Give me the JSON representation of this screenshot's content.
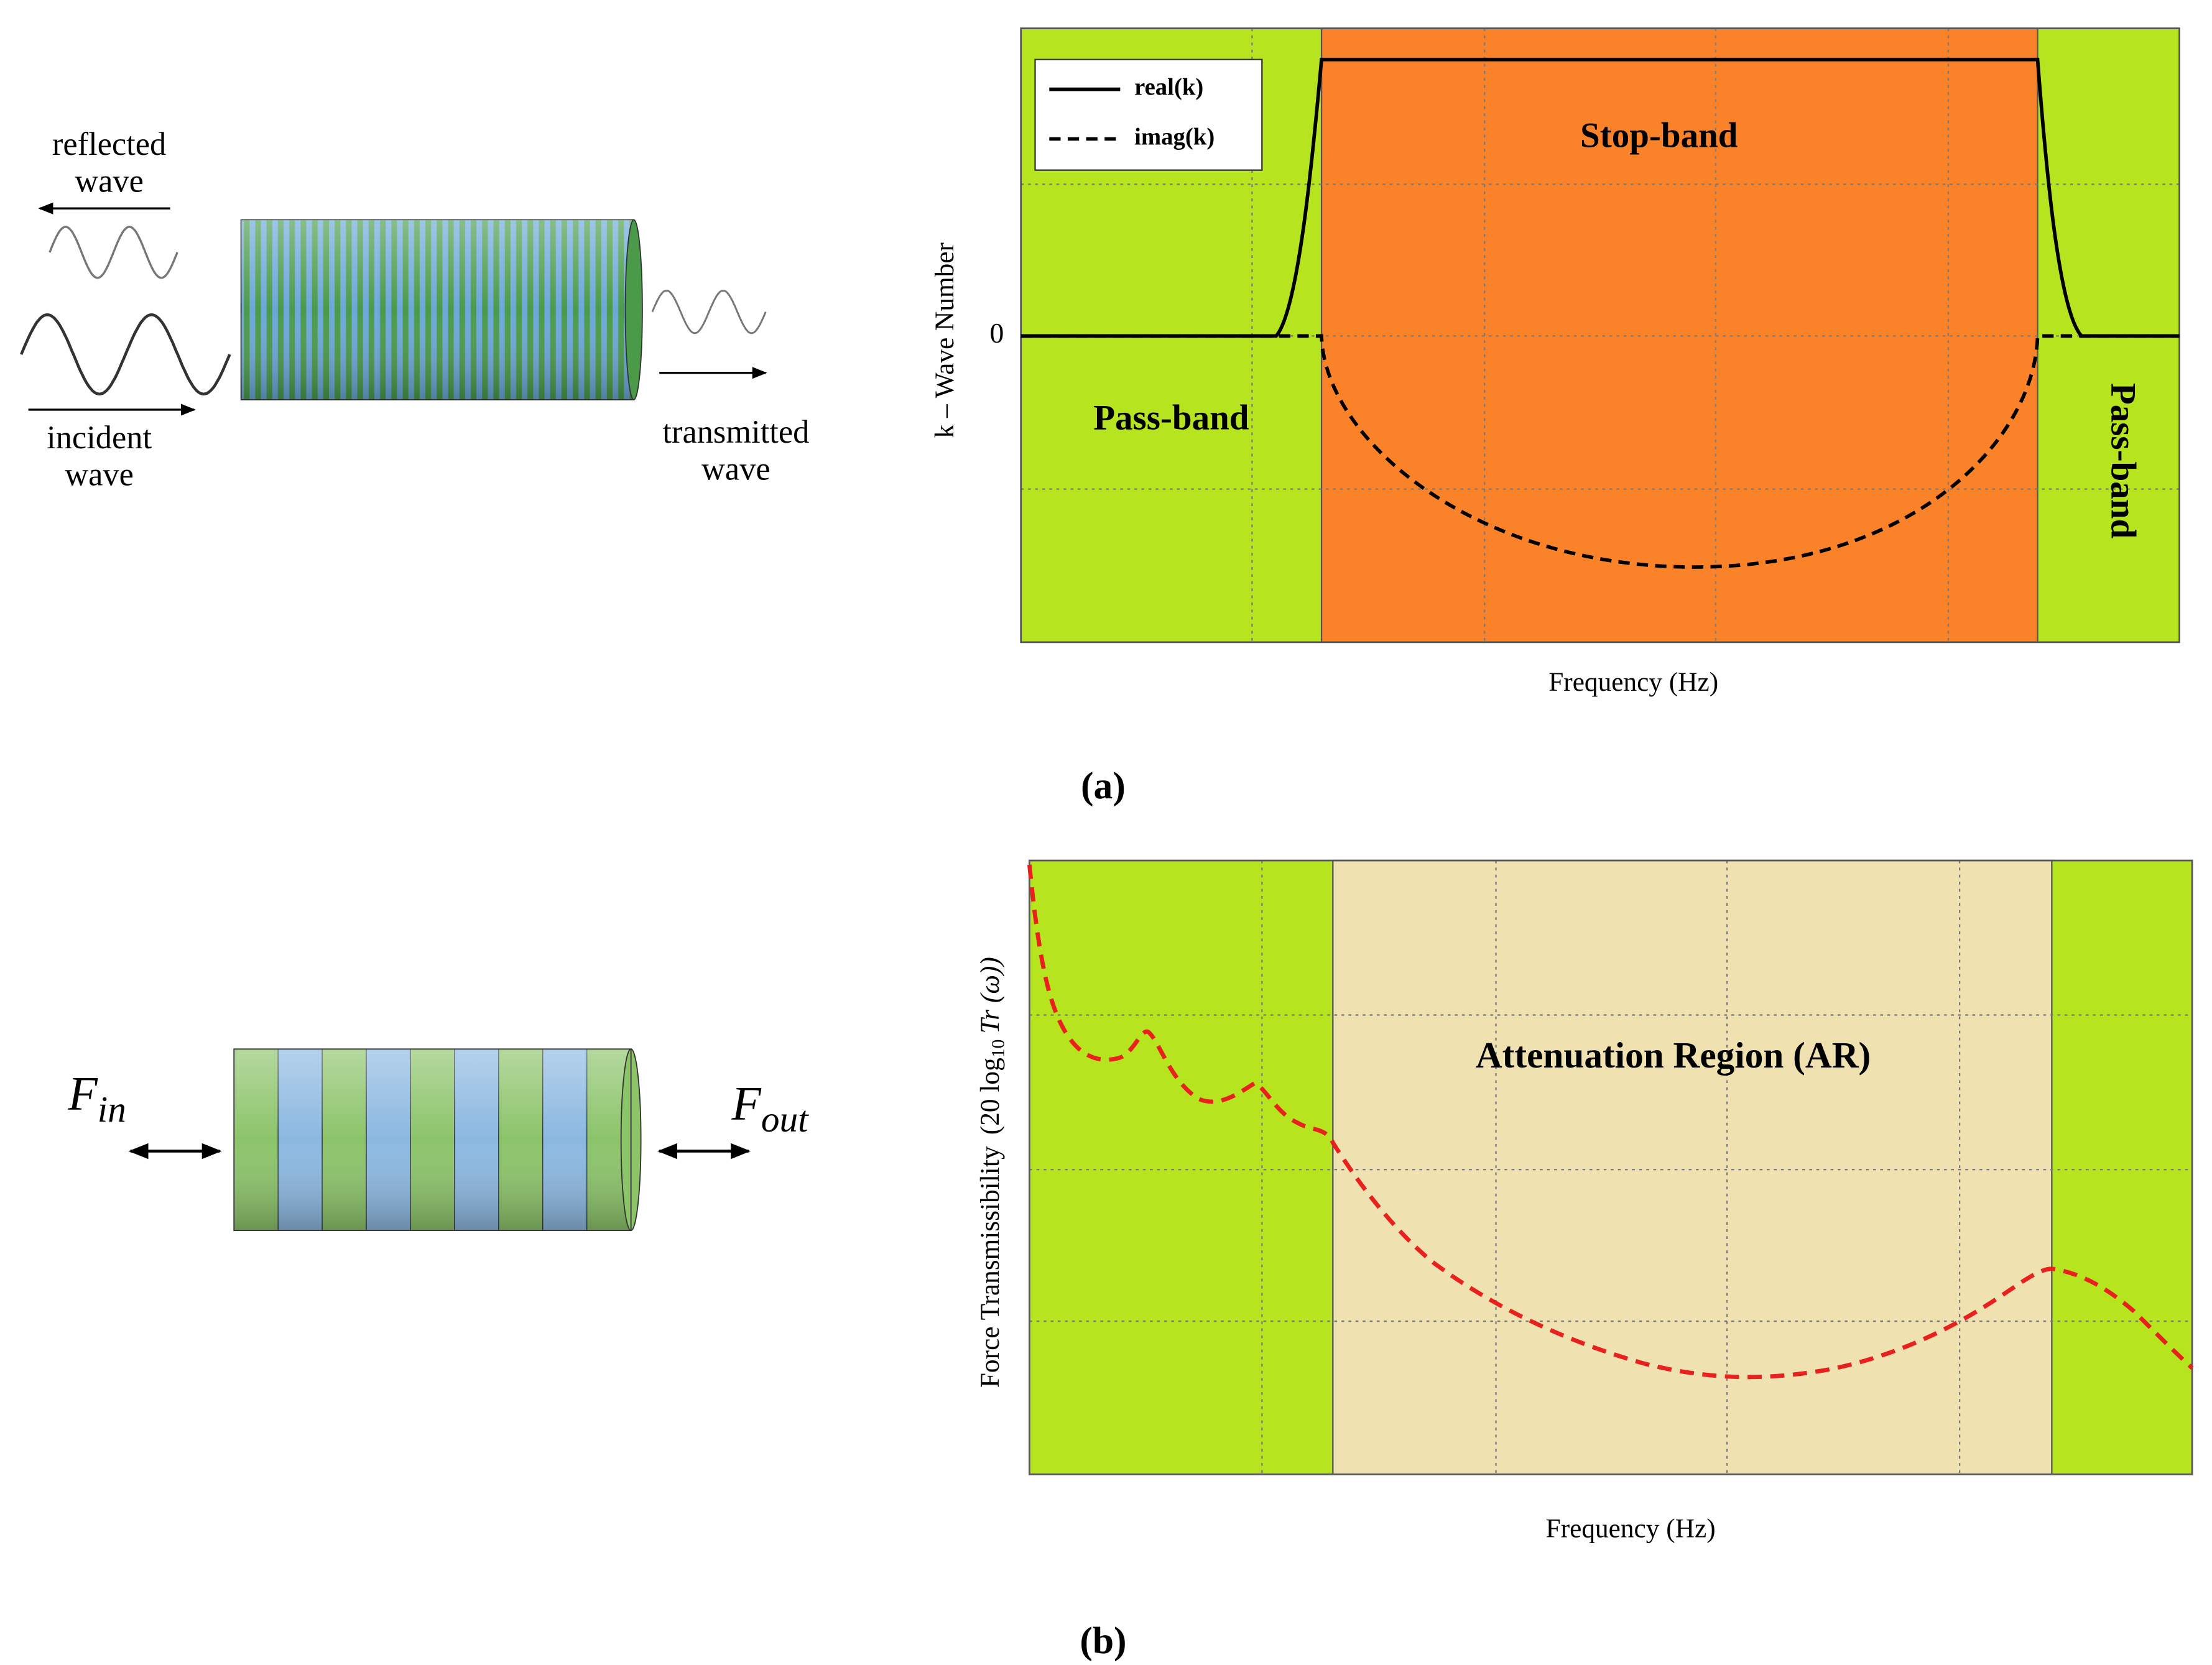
{
  "panel_a": {
    "schematic": {
      "reflected": [
        "reflected",
        "wave"
      ],
      "incident": [
        "incident",
        "wave"
      ],
      "transmitted": [
        "transmitted",
        "wave"
      ]
    },
    "plot": {
      "legend": [
        "real(k)",
        "imag(k)"
      ],
      "stop_band": "Stop-band",
      "pass_band_left": "Pass-band",
      "pass_band_right": "Pass-band",
      "y_label": "k – Wave Number",
      "y_tick": "0",
      "x_label": "Frequency (Hz)"
    },
    "label": "(a)"
  },
  "panel_b": {
    "schematic": {
      "f_in": {
        "symbol": "F",
        "subscript": "in"
      },
      "f_out": {
        "symbol": "F",
        "subscript": "out"
      }
    },
    "plot": {
      "region": "Attenuation Region (AR)",
      "y_label": [
        "Force Transmissibility",
        "(20 log",
        "10",
        "Tr (ω))"
      ],
      "x_label": "Frequency (Hz)"
    },
    "label": "(b)"
  }
}
